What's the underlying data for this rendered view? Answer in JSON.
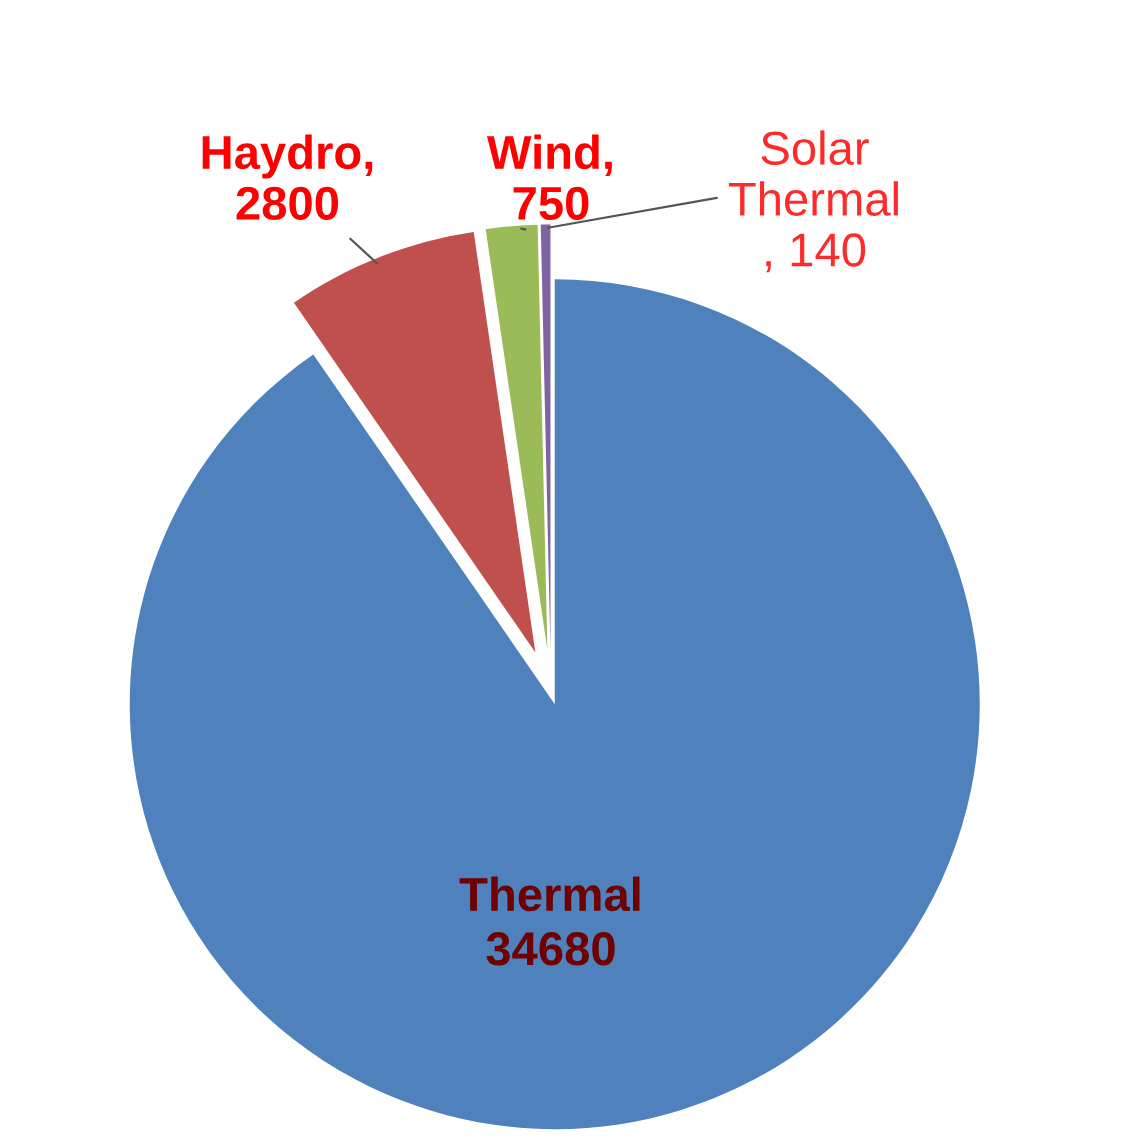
{
  "chart_data": {
    "type": "pie",
    "categories": [
      "Thermal",
      "Haydro",
      "Wind",
      "Solar Thermal"
    ],
    "values": [
      34680,
      2800,
      750,
      140
    ],
    "colors": [
      "#4f81bd",
      "#c0504d",
      "#9bbb59",
      "#8064a2"
    ],
    "value_labels": [
      "34680",
      ", 2800",
      ", 750",
      ", 140"
    ]
  }
}
